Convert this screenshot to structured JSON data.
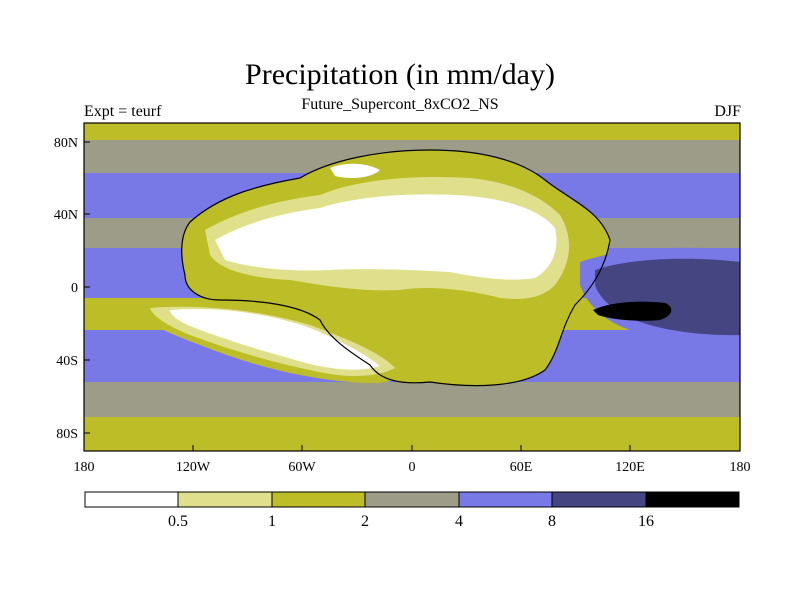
{
  "title": "Precipitation (in mm/day)",
  "subtitle": "Future_Supercont_8xCO2_NS",
  "left_label": "Expt = teurf",
  "right_label": "DJF",
  "x_ticks": [
    "180",
    "120W",
    "60W",
    "0",
    "60E",
    "120E",
    "180"
  ],
  "y_ticks": [
    "80N",
    "40N",
    "0",
    "40S",
    "80S"
  ],
  "colorbar": {
    "labels": [
      "0.5",
      "1",
      "2",
      "4",
      "8",
      "16"
    ],
    "colors": [
      "#ffffff",
      "#e0e08c",
      "#bdbd28",
      "#9c9c88",
      "#7878e6",
      "#454582",
      "#000000"
    ]
  },
  "palette": {
    "white": "#ffffff",
    "pale_yellow": "#e0e08c",
    "olive": "#bdbd28",
    "gray": "#9c9c88",
    "light_blue": "#7878e6",
    "dark_blue": "#454582",
    "black": "#000000"
  }
}
